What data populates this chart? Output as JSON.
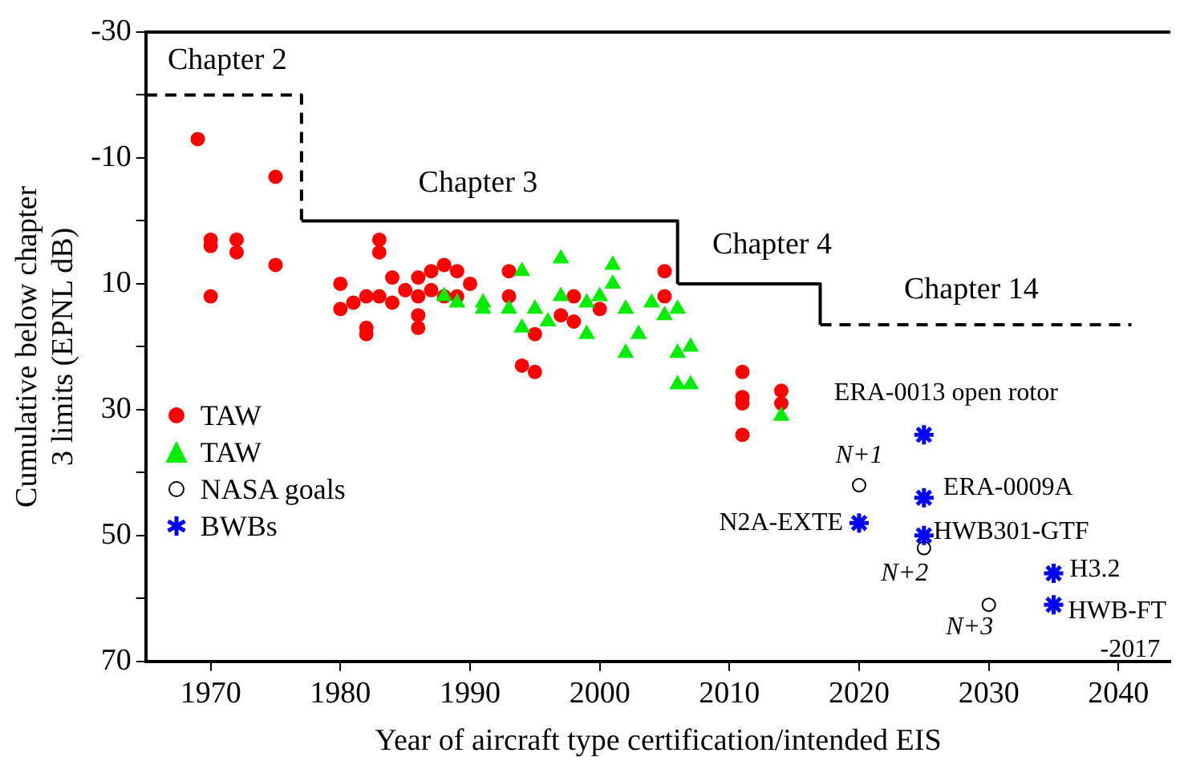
{
  "chart_data": {
    "type": "scatter",
    "xlabel": "Year of aircraft type certification/intended EIS",
    "ylabel": "Cumulative below chapter\n3 limits (EPNL dB)",
    "xlim": [
      1965,
      2044
    ],
    "xticks": [
      1970,
      1980,
      1990,
      2000,
      2010,
      2020,
      2030,
      2040
    ],
    "ylim": [
      70,
      -30
    ],
    "yticks": [
      -30,
      {
        "value": -20,
        "label": null
      },
      -10,
      {
        "value": 0,
        "label": null
      },
      10,
      {
        "value": 20,
        "label": null
      },
      30,
      {
        "value": 40,
        "label": null
      },
      50,
      {
        "value": 60,
        "label": null
      },
      70
    ],
    "grid": false,
    "legend": "left",
    "series": [
      {
        "name": "TAW",
        "color": "#ff0000",
        "marker": "circle",
        "x": [
          1969,
          1975,
          1970,
          1970,
          1972,
          1972,
          1975,
          1970,
          1980,
          1980,
          1981,
          1982,
          1982,
          1982,
          1983,
          1983,
          1983,
          1984,
          1984,
          1985,
          1986,
          1986,
          1986,
          1986,
          1987,
          1987,
          1988,
          1988,
          1989,
          1989,
          1990,
          1993,
          1993,
          1998,
          1997,
          1998,
          1995,
          1994,
          1995,
          2000,
          2005,
          2005,
          2011,
          2011,
          2011,
          2011,
          2014,
          2014
        ],
        "values": [
          -13,
          -7,
          3,
          4,
          3,
          5,
          7,
          12,
          10,
          14,
          13,
          12,
          17,
          18,
          12,
          3,
          5,
          9,
          13,
          11,
          9,
          12,
          15,
          17,
          8,
          11,
          7,
          12,
          8,
          12,
          10,
          8,
          12,
          12,
          15,
          16,
          18,
          23,
          24,
          14,
          8,
          12,
          24,
          28,
          29,
          34,
          27,
          29
        ]
      },
      {
        "name": "TAW",
        "color": "#00ee00",
        "marker": "triangle",
        "x": [
          1988,
          1989,
          1991,
          1997,
          2001,
          1994,
          2001,
          1991,
          1993,
          1994,
          1995,
          1996,
          1997,
          1999,
          1999,
          2000,
          2002,
          2004,
          2006,
          2005,
          2003,
          2002,
          2006,
          2007,
          2006,
          2007,
          2014
        ],
        "values": [
          12,
          13,
          13,
          6,
          7,
          8,
          10,
          14,
          14,
          17,
          14,
          16,
          12,
          13,
          18,
          12,
          14,
          13,
          14,
          15,
          18,
          21,
          21,
          20,
          26,
          26,
          31
        ]
      },
      {
        "name": "NASA goals",
        "color": "#000000",
        "marker": "circle",
        "x": [
          2020,
          2025,
          2030
        ],
        "values": [
          42,
          52,
          61
        ]
      },
      {
        "name": "BWBs",
        "color": "#0000ff",
        "marker": "cross",
        "x": [
          2025,
          2025,
          2020,
          2025,
          2035,
          2035
        ],
        "values": [
          34,
          44,
          48,
          50,
          56,
          61
        ]
      },
      {
        "type": "step",
        "color": "#000000",
        "line_style": "dashed",
        "x": [
          1965,
          1977
        ],
        "values": [
          -20,
          0
        ]
      },
      {
        "type": "step",
        "color": "#000000",
        "line_style": "solid",
        "x": [
          1977,
          2006
        ],
        "values": [
          0,
          10
        ]
      },
      {
        "type": "step",
        "color": "#000000",
        "line_style": "solid",
        "x": [
          2006,
          2017
        ],
        "values": [
          10,
          16.5
        ]
      },
      {
        "type": "step",
        "color": "#000000",
        "line_style": "dashed",
        "x": [
          2017,
          2041
        ],
        "values": [
          16.5,
          16.5
        ]
      }
    ],
    "annotations": [
      "Chapter 2",
      "Chapter 3",
      "Chapter 4",
      "Chapter 14",
      {
        "text": "ERA-0013 open rotor",
        "x": 2025,
        "y": 34
      },
      {
        "text": "N+1",
        "x": 2020,
        "y": 42
      },
      {
        "text": "ERA-0009A",
        "x": 2025,
        "y": 44
      },
      {
        "text": "N2A-EXTE",
        "x": 2020,
        "y": 48
      },
      {
        "text": "HWB301-GTF",
        "x": 2025,
        "y": 50
      },
      {
        "text": "N+2",
        "x": 2025,
        "y": 52
      },
      {
        "text": "H3.2",
        "x": 2035,
        "y": 56
      },
      {
        "text": "HWB-FT\n-2017",
        "x": 2035,
        "y": 61
      },
      {
        "text": "N+3",
        "x": 2030,
        "y": 61
      }
    ]
  }
}
